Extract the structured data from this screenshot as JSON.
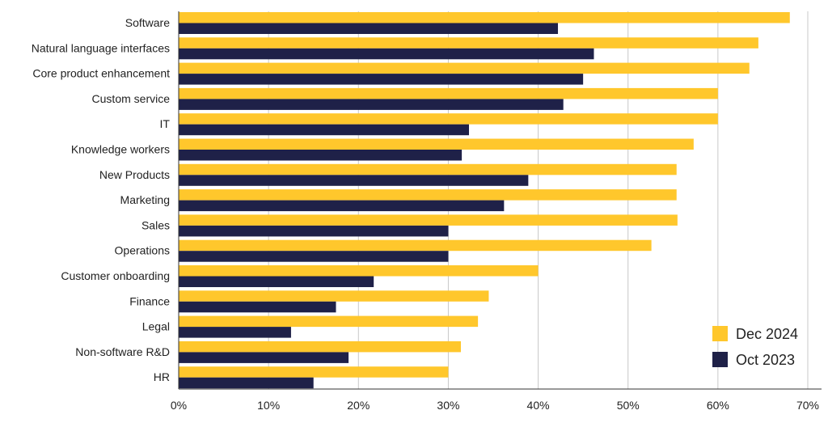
{
  "chart_data": {
    "type": "bar",
    "orientation": "horizontal",
    "categories": [
      "Software",
      "Natural language interfaces",
      "Core product enhancement",
      "Custom service",
      "IT",
      "Knowledge workers",
      "New Products",
      "Marketing",
      "Sales",
      "Operations",
      "Customer onboarding",
      "Finance",
      "Legal",
      "Non-software R&D",
      "HR"
    ],
    "series": [
      {
        "name": "Dec 2024",
        "color": "#FFC72C",
        "values": [
          68,
          64.5,
          63.5,
          60,
          60,
          57.3,
          55.4,
          55.4,
          55.5,
          52.6,
          40,
          34.5,
          33.3,
          31.4,
          30
        ]
      },
      {
        "name": "Oct 2023",
        "color": "#1F2148",
        "values": [
          42.2,
          46.2,
          45,
          42.8,
          32.3,
          31.5,
          38.9,
          36.2,
          30,
          30,
          21.7,
          17.5,
          12.5,
          18.9,
          15
        ]
      }
    ],
    "xlim": [
      0,
      70
    ],
    "xticks": [
      "0%",
      "10%",
      "20%",
      "30%",
      "40%",
      "50%",
      "60%",
      "70%"
    ],
    "grid": "vertical",
    "legend": {
      "position": "bottom-right",
      "items": [
        "Dec 2024",
        "Oct 2023"
      ]
    }
  }
}
